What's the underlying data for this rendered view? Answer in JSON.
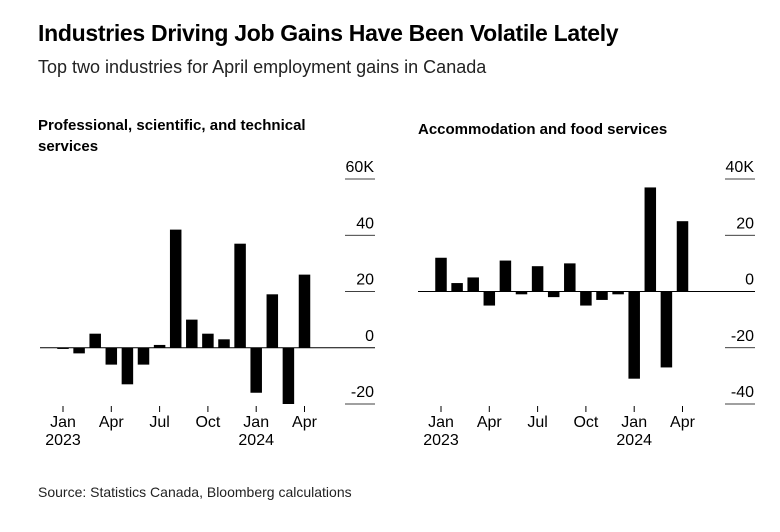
{
  "header": {
    "title": "Industries Driving Job Gains Have Been Volatile Lately",
    "subtitle": "Top two industries for April employment gains in Canada"
  },
  "footer": {
    "source": "Source: Statistics Canada, Bloomberg calculations"
  },
  "colors": {
    "bar": "#000000",
    "grid": "#000000",
    "text": "#000000"
  },
  "chart_data": [
    {
      "type": "bar",
      "title": "Professional, scientific, and technical services",
      "categories": [
        "2023-01",
        "2023-02",
        "2023-03",
        "2023-04",
        "2023-05",
        "2023-06",
        "2023-07",
        "2023-08",
        "2023-09",
        "2023-10",
        "2023-11",
        "2023-12",
        "2024-01",
        "2024-02",
        "2024-03",
        "2024-04"
      ],
      "values": [
        0,
        -2,
        5,
        -6,
        -13,
        -6,
        1,
        42,
        10,
        5,
        3,
        37,
        -16,
        19,
        -20,
        26
      ],
      "ylim": [
        -20,
        60
      ],
      "yticks": [
        {
          "value": 60,
          "label": "60K"
        },
        {
          "value": 40,
          "label": "40"
        },
        {
          "value": 20,
          "label": "20"
        },
        {
          "value": 0,
          "label": "0"
        },
        {
          "value": -20,
          "label": "-20"
        }
      ],
      "xticks": [
        {
          "index": 0,
          "label": "Jan",
          "sublabel": "2023"
        },
        {
          "index": 3,
          "label": "Apr",
          "sublabel": ""
        },
        {
          "index": 6,
          "label": "Jul",
          "sublabel": ""
        },
        {
          "index": 9,
          "label": "Oct",
          "sublabel": ""
        },
        {
          "index": 12,
          "label": "Jan",
          "sublabel": "2024"
        },
        {
          "index": 15,
          "label": "Apr",
          "sublabel": ""
        }
      ]
    },
    {
      "type": "bar",
      "title": "Accommodation and food services",
      "categories": [
        "2023-01",
        "2023-02",
        "2023-03",
        "2023-04",
        "2023-05",
        "2023-06",
        "2023-07",
        "2023-08",
        "2023-09",
        "2023-10",
        "2023-11",
        "2023-12",
        "2024-01",
        "2024-02",
        "2024-03",
        "2024-04"
      ],
      "values": [
        12,
        3,
        5,
        -5,
        11,
        -1,
        9,
        -2,
        10,
        -5,
        -3,
        -1,
        -31,
        37,
        -27,
        25
      ],
      "ylim": [
        -40,
        40
      ],
      "yticks": [
        {
          "value": 40,
          "label": "40K"
        },
        {
          "value": 20,
          "label": "20"
        },
        {
          "value": 0,
          "label": "0"
        },
        {
          "value": -20,
          "label": "-20"
        },
        {
          "value": -40,
          "label": "-40"
        }
      ],
      "xticks": [
        {
          "index": 0,
          "label": "Jan",
          "sublabel": "2023"
        },
        {
          "index": 3,
          "label": "Apr",
          "sublabel": ""
        },
        {
          "index": 6,
          "label": "Jul",
          "sublabel": ""
        },
        {
          "index": 9,
          "label": "Oct",
          "sublabel": ""
        },
        {
          "index": 12,
          "label": "Jan",
          "sublabel": "2024"
        },
        {
          "index": 15,
          "label": "Apr",
          "sublabel": ""
        }
      ]
    }
  ]
}
